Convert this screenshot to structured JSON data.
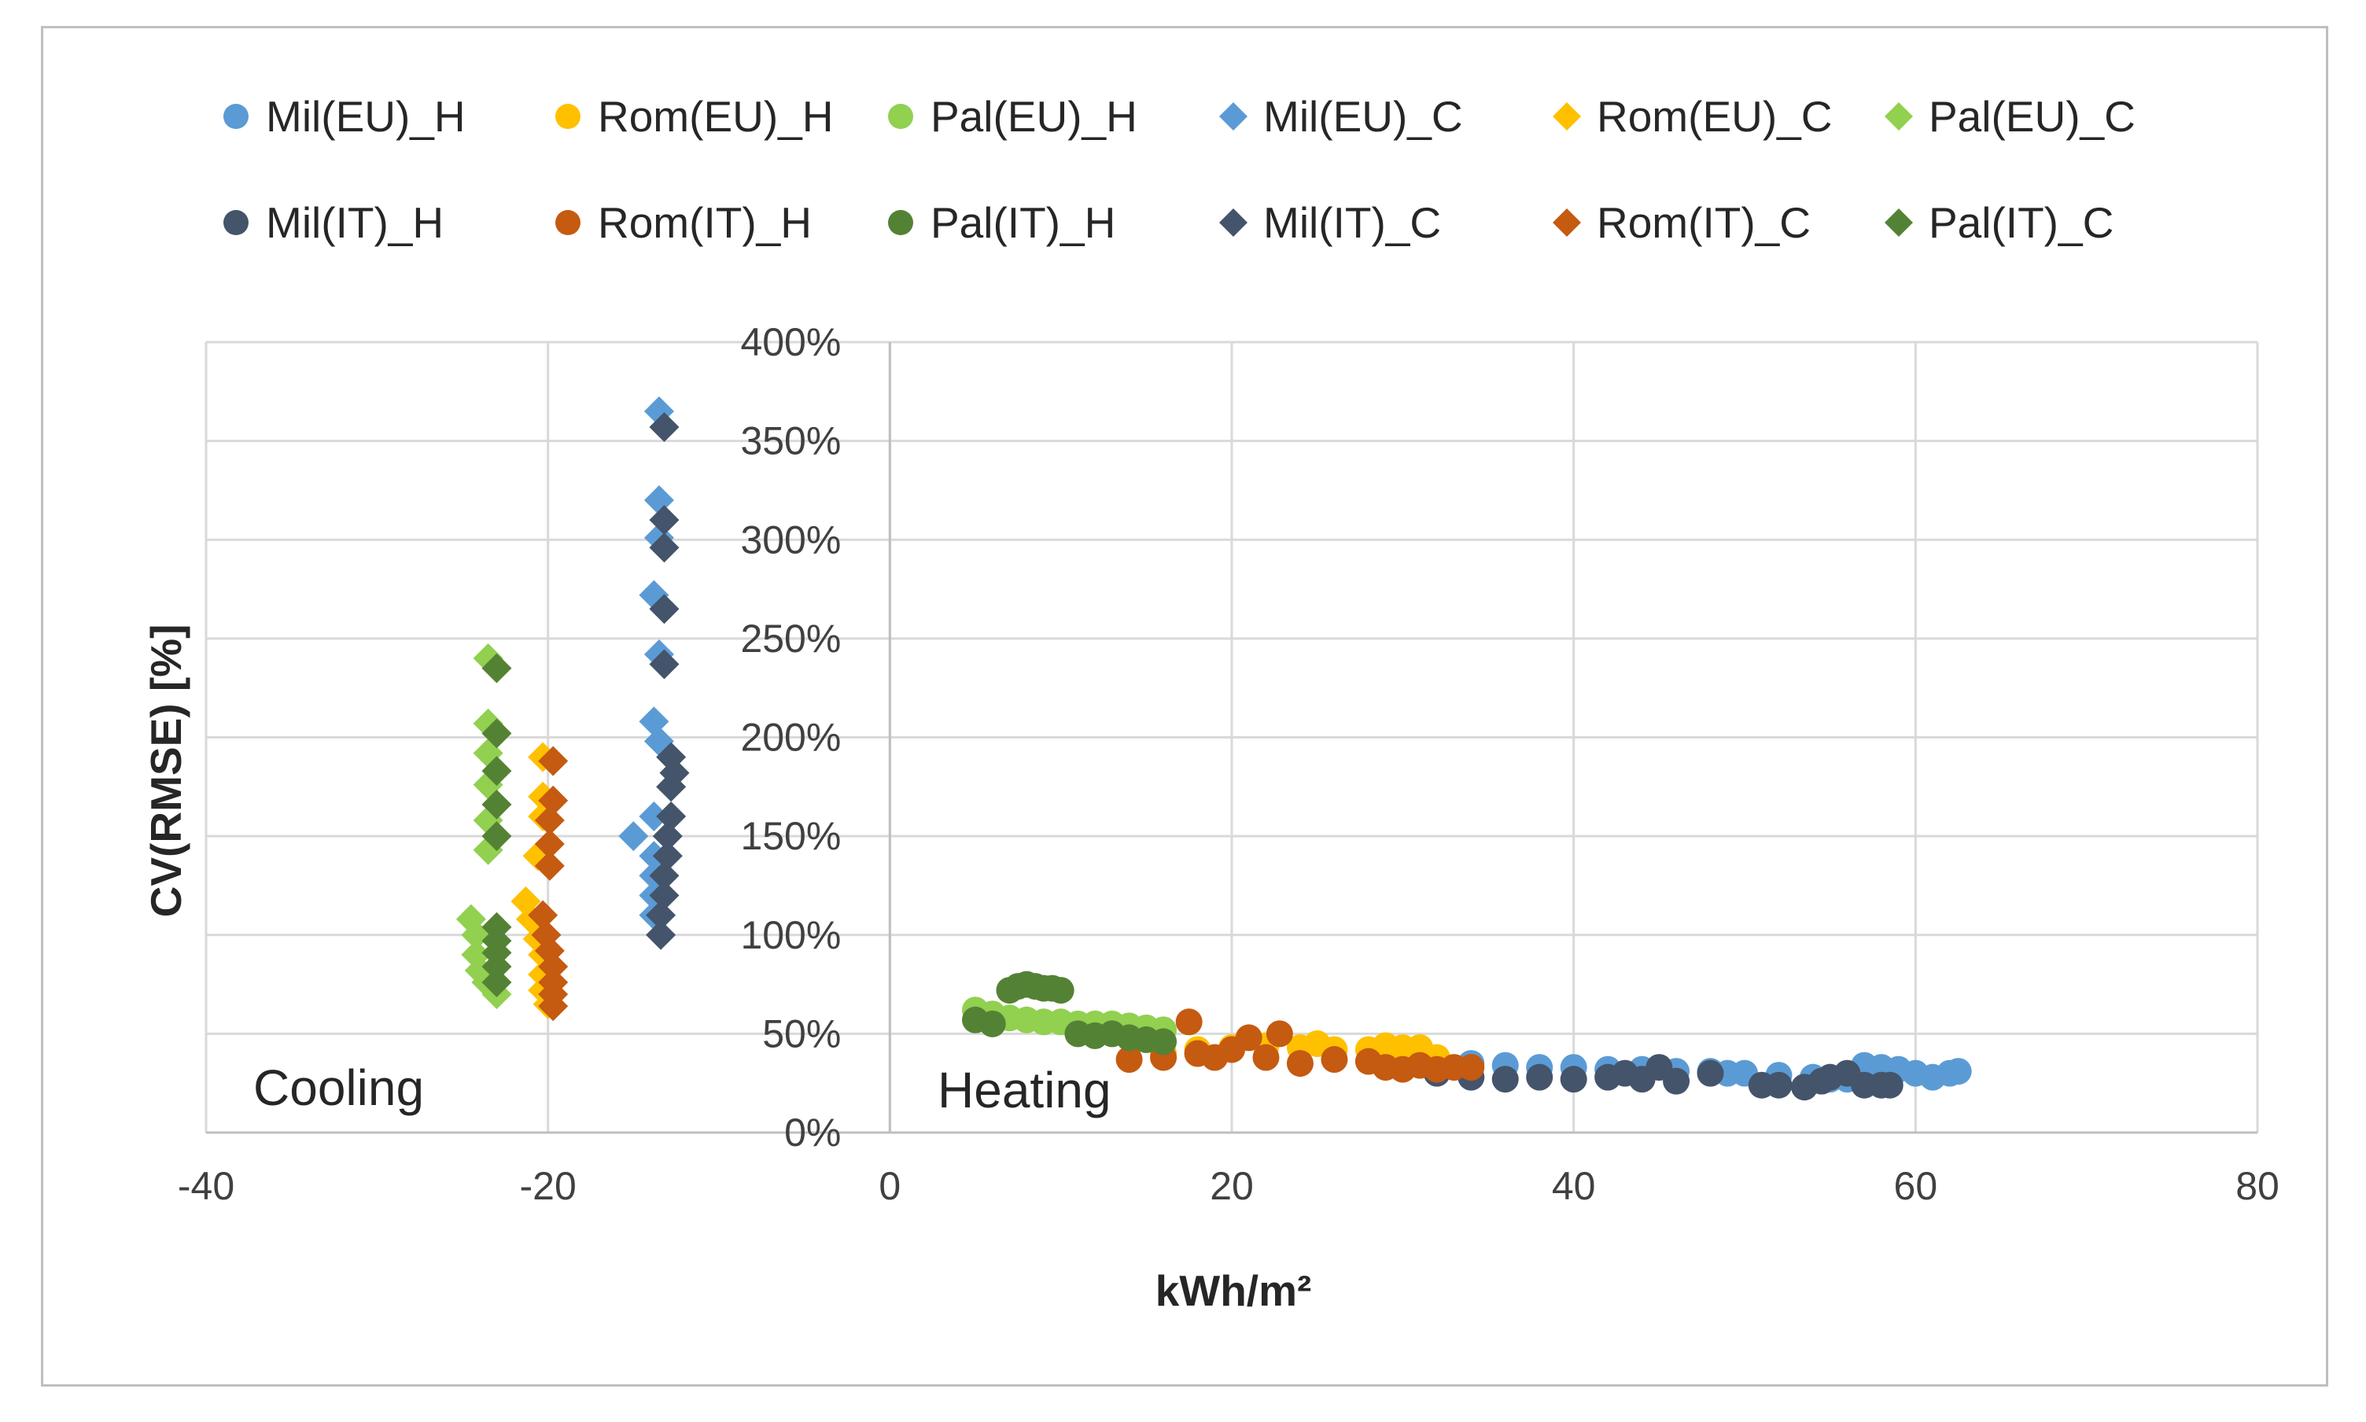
{
  "chart_data": {
    "type": "scatter",
    "title": "",
    "xlabel": "kWh/m²",
    "ylabel": "CV(RMSE) [%]",
    "xlim": [
      -40,
      80
    ],
    "ylim": [
      0,
      400
    ],
    "xticks": [
      "-40",
      "-20",
      "0",
      "20",
      "40",
      "60",
      "80"
    ],
    "yticks": [
      "0%",
      "50%",
      "100%",
      "150%",
      "200%",
      "250%",
      "300%",
      "350%",
      "400%"
    ],
    "grid": true,
    "legend_position": "top",
    "annotations": [
      {
        "text": "Cooling",
        "x": -35,
        "y": 22
      },
      {
        "text": "Heating",
        "x": 9,
        "y": 22
      }
    ],
    "series": [
      {
        "name": "Mil(EU)_H",
        "marker": "circle",
        "color": "#5B9BD5",
        "points": [
          [
            34,
            35
          ],
          [
            36,
            34
          ],
          [
            38,
            33
          ],
          [
            40,
            33
          ],
          [
            42,
            32
          ],
          [
            44,
            32
          ],
          [
            46,
            31
          ],
          [
            48,
            31
          ],
          [
            49,
            30
          ],
          [
            50,
            30
          ],
          [
            52,
            29
          ],
          [
            54,
            28
          ],
          [
            55,
            27
          ],
          [
            56,
            27
          ],
          [
            57,
            34
          ],
          [
            58,
            33
          ],
          [
            59,
            32
          ],
          [
            60,
            30
          ],
          [
            61,
            28
          ],
          [
            62,
            30
          ],
          [
            62.5,
            31
          ]
        ]
      },
      {
        "name": "Rom(EU)_H",
        "marker": "circle",
        "color": "#FFC000",
        "points": [
          [
            16,
            40
          ],
          [
            18,
            42
          ],
          [
            20,
            43
          ],
          [
            22,
            44
          ],
          [
            24,
            43
          ],
          [
            25,
            45
          ],
          [
            26,
            42
          ],
          [
            28,
            42
          ],
          [
            29,
            44
          ],
          [
            30,
            43
          ],
          [
            31,
            43
          ],
          [
            32,
            38
          ]
        ]
      },
      {
        "name": "Pal(EU)_H",
        "marker": "circle",
        "color": "#92D050",
        "points": [
          [
            5,
            62
          ],
          [
            6,
            60
          ],
          [
            7,
            58
          ],
          [
            8,
            57
          ],
          [
            9,
            56
          ],
          [
            10,
            56
          ],
          [
            11,
            55
          ],
          [
            12,
            55
          ],
          [
            13,
            55
          ],
          [
            14,
            54
          ],
          [
            15,
            53
          ],
          [
            16,
            52
          ]
        ]
      },
      {
        "name": "Mil(EU)_C",
        "marker": "diamond",
        "color": "#5B9BD5",
        "points": [
          [
            -13.5,
            365
          ],
          [
            -13.5,
            320
          ],
          [
            -13.5,
            301
          ],
          [
            -13.8,
            272
          ],
          [
            -13.5,
            242
          ],
          [
            -13.8,
            208
          ],
          [
            -13.5,
            198
          ],
          [
            -15,
            150
          ],
          [
            -13.8,
            160
          ],
          [
            -13.8,
            140
          ],
          [
            -13.8,
            130
          ],
          [
            -13.8,
            120
          ],
          [
            -13.8,
            110
          ]
        ]
      },
      {
        "name": "Rom(EU)_C",
        "marker": "diamond",
        "color": "#FFC000",
        "points": [
          [
            -20.3,
            190
          ],
          [
            -20.3,
            170
          ],
          [
            -20.3,
            160
          ],
          [
            -20.6,
            140
          ],
          [
            -21.3,
            117
          ],
          [
            -21,
            108
          ],
          [
            -20.6,
            98
          ],
          [
            -20.3,
            90
          ],
          [
            -20.3,
            80
          ],
          [
            -20.3,
            72
          ],
          [
            -20,
            65
          ]
        ]
      },
      {
        "name": "Pal(EU)_C",
        "marker": "diamond",
        "color": "#92D050",
        "points": [
          [
            -23.5,
            240
          ],
          [
            -23.5,
            207
          ],
          [
            -23.5,
            192
          ],
          [
            -23.5,
            176
          ],
          [
            -23.5,
            158
          ],
          [
            -23.5,
            143
          ],
          [
            -24.5,
            108
          ],
          [
            -24.2,
            100
          ],
          [
            -24.2,
            90
          ],
          [
            -24,
            82
          ],
          [
            -23.6,
            76
          ],
          [
            -23,
            70
          ]
        ]
      },
      {
        "name": "Mil(IT)_H",
        "marker": "circle",
        "color": "#44546A",
        "points": [
          [
            32,
            30
          ],
          [
            34,
            28
          ],
          [
            36,
            27
          ],
          [
            38,
            28
          ],
          [
            40,
            27
          ],
          [
            42,
            28
          ],
          [
            43,
            30
          ],
          [
            44,
            27
          ],
          [
            45,
            33
          ],
          [
            46,
            26
          ],
          [
            48,
            30
          ],
          [
            51,
            24
          ],
          [
            52,
            24
          ],
          [
            53.5,
            23
          ],
          [
            54.5,
            26
          ],
          [
            55,
            28
          ],
          [
            56,
            30
          ],
          [
            57,
            24
          ],
          [
            58,
            24
          ],
          [
            58.5,
            24
          ]
        ]
      },
      {
        "name": "Rom(IT)_H",
        "marker": "circle",
        "color": "#C55A11",
        "points": [
          [
            14,
            37
          ],
          [
            16,
            38
          ],
          [
            17.5,
            56
          ],
          [
            18,
            40
          ],
          [
            19,
            38
          ],
          [
            20,
            42
          ],
          [
            21,
            48
          ],
          [
            22,
            38
          ],
          [
            22.8,
            50
          ],
          [
            24,
            35
          ],
          [
            26,
            37
          ],
          [
            28,
            36
          ],
          [
            29,
            33
          ],
          [
            30,
            32
          ],
          [
            31,
            34
          ],
          [
            32,
            32
          ],
          [
            33,
            33
          ],
          [
            34,
            33
          ]
        ]
      },
      {
        "name": "Pal(IT)_H",
        "marker": "circle",
        "color": "#548235",
        "points": [
          [
            5,
            57
          ],
          [
            6,
            55
          ],
          [
            7,
            72
          ],
          [
            7.5,
            74
          ],
          [
            8,
            75
          ],
          [
            8.5,
            74
          ],
          [
            9,
            73
          ],
          [
            9.5,
            73
          ],
          [
            10,
            72
          ],
          [
            11,
            50
          ],
          [
            12,
            49
          ],
          [
            13,
            50
          ],
          [
            14,
            48
          ],
          [
            15,
            47
          ],
          [
            16,
            46
          ]
        ]
      },
      {
        "name": "Mil(IT)_C",
        "marker": "diamond",
        "color": "#44546A",
        "points": [
          [
            -13.2,
            357
          ],
          [
            -13.2,
            310
          ],
          [
            -13.2,
            296
          ],
          [
            -13.2,
            265
          ],
          [
            -13.2,
            237
          ],
          [
            -12.8,
            190
          ],
          [
            -12.6,
            182
          ],
          [
            -12.8,
            175
          ],
          [
            -12.8,
            160
          ],
          [
            -13,
            150
          ],
          [
            -13,
            140
          ],
          [
            -13.2,
            130
          ],
          [
            -13.2,
            120
          ],
          [
            -13.4,
            110
          ],
          [
            -13.4,
            100
          ]
        ]
      },
      {
        "name": "Rom(IT)_C",
        "marker": "diamond",
        "color": "#C55A11",
        "points": [
          [
            -19.7,
            188
          ],
          [
            -19.7,
            168
          ],
          [
            -19.9,
            158
          ],
          [
            -19.9,
            146
          ],
          [
            -19.9,
            135
          ],
          [
            -20.3,
            110
          ],
          [
            -20.1,
            100
          ],
          [
            -19.9,
            92
          ],
          [
            -19.7,
            84
          ],
          [
            -19.7,
            76
          ],
          [
            -19.7,
            70
          ],
          [
            -19.7,
            64
          ]
        ]
      },
      {
        "name": "Pal(IT)_C",
        "marker": "diamond",
        "color": "#548235",
        "points": [
          [
            -23,
            235
          ],
          [
            -23,
            202
          ],
          [
            -23,
            183
          ],
          [
            -23,
            166
          ],
          [
            -23,
            150
          ],
          [
            -23,
            104
          ],
          [
            -23,
            97
          ],
          [
            -23,
            91
          ],
          [
            -23,
            84
          ],
          [
            -23,
            76
          ]
        ]
      }
    ]
  }
}
